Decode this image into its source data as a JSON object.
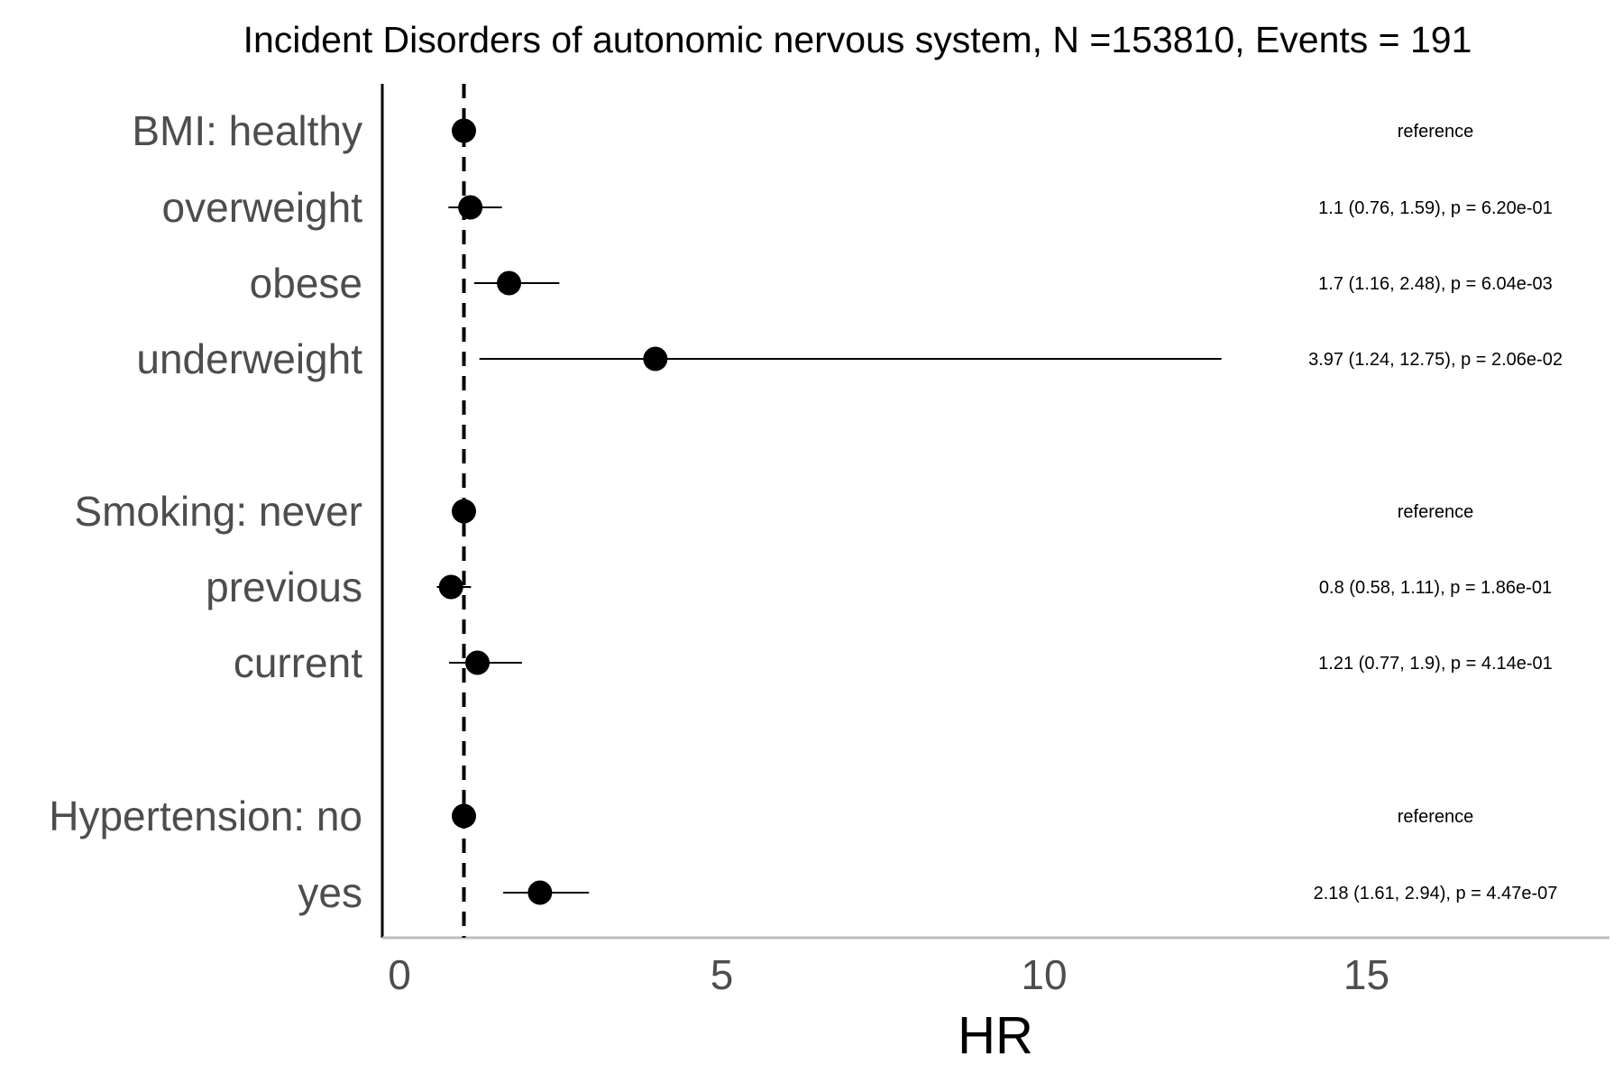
{
  "chart_data": {
    "type": "forest",
    "title": "Incident Disorders of autonomic nervous system, N =153810, Events = 191",
    "xlabel": "HR",
    "ylabel": "",
    "xlim": [
      -0.5,
      18.6
    ],
    "x_ticks": [
      0,
      5,
      10,
      15
    ],
    "x_tick_labels": [
      "0",
      "5",
      "10",
      "15"
    ],
    "reference_line": 1,
    "grid": false,
    "colors": {
      "point": "#000000",
      "whisker": "#000000",
      "reference_line": "#000000",
      "y_axis_line": "#000000",
      "x_axis_line": "#bebebe",
      "label_text": "#4d4d4d"
    },
    "rows": [
      {
        "label": "BMI: healthy",
        "hr": 1.0,
        "lower": null,
        "upper": null,
        "annotation": "reference"
      },
      {
        "label": "overweight",
        "hr": 1.1,
        "lower": 0.76,
        "upper": 1.59,
        "annotation": "1.1 (0.76, 1.59), p = 6.20e-01"
      },
      {
        "label": "obese",
        "hr": 1.7,
        "lower": 1.16,
        "upper": 2.48,
        "annotation": "1.7 (1.16, 2.48), p = 6.04e-03"
      },
      {
        "label": "underweight",
        "hr": 3.97,
        "lower": 1.24,
        "upper": 12.75,
        "annotation": "3.97 (1.24, 12.75), p = 2.06e-02"
      },
      {
        "label": "Smoking: never",
        "hr": 1.0,
        "lower": null,
        "upper": null,
        "annotation": "reference"
      },
      {
        "label": "previous",
        "hr": 0.8,
        "lower": 0.58,
        "upper": 1.11,
        "annotation": "0.8 (0.58, 1.11), p = 1.86e-01"
      },
      {
        "label": "current",
        "hr": 1.21,
        "lower": 0.77,
        "upper": 1.9,
        "annotation": "1.21 (0.77, 1.9), p = 4.14e-01"
      },
      {
        "label": "Hypertension: no",
        "hr": 1.0,
        "lower": null,
        "upper": null,
        "annotation": "reference"
      },
      {
        "label": "yes",
        "hr": 2.18,
        "lower": 1.61,
        "upper": 2.94,
        "annotation": "2.18 (1.61, 2.94), p = 4.47e-07"
      }
    ]
  }
}
